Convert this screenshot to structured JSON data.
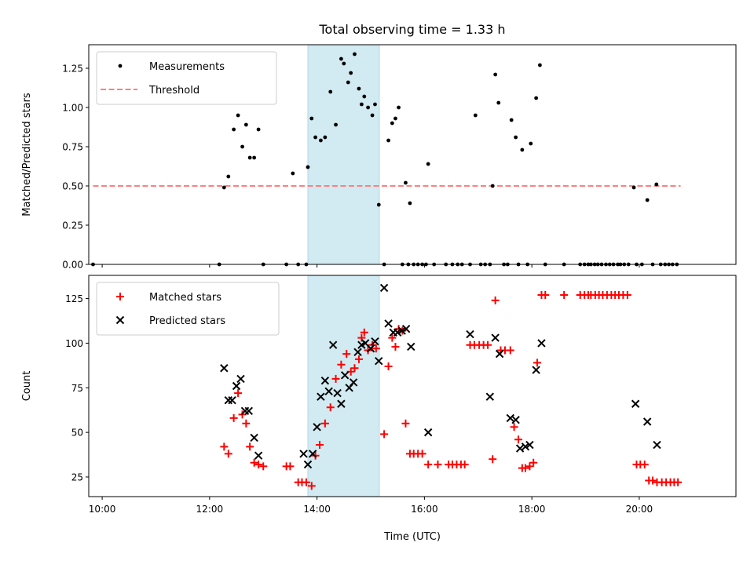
{
  "figure": {
    "title": "Total observing time = 1.33 h"
  },
  "colors": {
    "measure": "#000000",
    "threshold": "#ff7f7f",
    "span": "#add8e6",
    "matched": "#ff0000",
    "predicted": "#000000"
  },
  "chart_data": [
    {
      "type": "scatter",
      "ylabel": "Matched/Predicted stars",
      "xlabel": "",
      "xlim": [
        9.75,
        21.8
      ],
      "ylim": [
        0.0,
        1.4
      ],
      "yticks": [
        0.0,
        0.25,
        0.5,
        0.75,
        1.0,
        1.25
      ],
      "ytick_labels": [
        "0.00",
        "0.25",
        "0.50",
        "0.75",
        "1.00",
        "1.25"
      ],
      "xticks": [
        10,
        12,
        14,
        16,
        18,
        20
      ],
      "span": [
        13.83,
        15.16
      ],
      "legend": {
        "position": "top-left",
        "entries": [
          "Measurements",
          "Threshold"
        ]
      },
      "threshold": {
        "name": "Threshold",
        "x": [
          9.83,
          20.77
        ],
        "y": 0.5
      },
      "series": [
        {
          "name": "Measurements",
          "x": [
            9.83,
            12.18,
            12.27,
            12.35,
            12.45,
            12.53,
            12.61,
            12.68,
            12.75,
            12.83,
            12.91,
            13.0,
            13.43,
            13.55,
            13.65,
            13.8,
            13.83,
            13.9,
            13.97,
            14.07,
            14.15,
            14.25,
            14.35,
            14.45,
            14.5,
            14.58,
            14.63,
            14.7,
            14.78,
            14.83,
            14.88,
            14.95,
            15.03,
            15.08,
            15.15,
            15.25,
            15.33,
            15.4,
            15.46,
            15.52,
            15.59,
            15.65,
            15.7,
            15.73,
            15.8,
            15.88,
            15.96,
            16.03,
            16.07,
            16.18,
            16.4,
            16.52,
            16.62,
            16.7,
            16.85,
            16.95,
            17.05,
            17.13,
            17.22,
            17.27,
            17.32,
            17.38,
            17.48,
            17.55,
            17.62,
            17.7,
            17.75,
            17.82,
            17.92,
            17.98,
            18.08,
            18.15,
            18.25,
            18.6,
            18.9,
            18.98,
            19.05,
            19.1,
            19.17,
            19.23,
            19.3,
            19.38,
            19.45,
            19.52,
            19.6,
            19.65,
            19.72,
            19.8,
            19.9,
            19.95,
            20.05,
            20.15,
            20.25,
            20.32,
            20.4,
            20.48,
            20.55,
            20.62,
            20.7
          ],
          "y": [
            0.0,
            0.0,
            0.49,
            0.56,
            0.86,
            0.95,
            0.75,
            0.89,
            0.68,
            0.68,
            0.86,
            0.0,
            0.0,
            0.58,
            0.0,
            0.0,
            0.62,
            0.93,
            0.81,
            0.79,
            0.81,
            1.1,
            0.89,
            1.31,
            1.28,
            1.16,
            1.22,
            1.34,
            1.12,
            1.02,
            1.07,
            1.0,
            0.95,
            1.02,
            0.38,
            0.0,
            0.79,
            0.9,
            0.93,
            1.0,
            0.0,
            0.52,
            0.0,
            0.39,
            0.0,
            0.0,
            0.0,
            0.0,
            0.64,
            0.0,
            0.0,
            0.0,
            0.0,
            0.0,
            0.0,
            0.95,
            0.0,
            0.0,
            0.0,
            0.5,
            1.21,
            1.03,
            0.0,
            0.0,
            0.92,
            0.81,
            0.0,
            0.73,
            0.0,
            0.77,
            1.06,
            1.27,
            0.0,
            0.0,
            0.0,
            0.0,
            0.0,
            0.0,
            0.0,
            0.0,
            0.0,
            0.0,
            0.0,
            0.0,
            0.0,
            0.0,
            0.0,
            0.0,
            0.49,
            0.0,
            0.0,
            0.41,
            0.0,
            0.51,
            0.0,
            0.0,
            0.0,
            0.0,
            0.0
          ]
        }
      ]
    },
    {
      "type": "scatter",
      "ylabel": "Count",
      "xlabel": "Time (UTC)",
      "xlim": [
        9.75,
        21.8
      ],
      "ylim": [
        14,
        138
      ],
      "yticks": [
        25,
        50,
        75,
        100,
        125
      ],
      "ytick_labels": [
        "25",
        "50",
        "75",
        "100",
        "125"
      ],
      "xticks": [
        10,
        12,
        14,
        16,
        18,
        20
      ],
      "xtick_labels": [
        "10:00",
        "12:00",
        "14:00",
        "16:00",
        "18:00",
        "20:00"
      ],
      "span": [
        13.83,
        15.16
      ],
      "legend": {
        "position": "top-left",
        "entries": [
          "Matched stars",
          "Predicted stars"
        ]
      },
      "series": [
        {
          "name": "Matched stars",
          "x": [
            12.27,
            12.35,
            12.45,
            12.53,
            12.61,
            12.68,
            12.75,
            12.83,
            12.91,
            13.0,
            13.43,
            13.5,
            13.65,
            13.72,
            13.8,
            13.9,
            13.97,
            14.05,
            14.15,
            14.25,
            14.35,
            14.45,
            14.55,
            14.63,
            14.7,
            14.78,
            14.83,
            14.88,
            14.95,
            15.03,
            15.1,
            15.25,
            15.33,
            15.4,
            15.46,
            15.52,
            15.59,
            15.65,
            15.73,
            15.8,
            15.88,
            15.96,
            16.07,
            16.25,
            16.45,
            16.52,
            16.6,
            16.68,
            16.75,
            16.85,
            16.93,
            17.02,
            17.1,
            17.18,
            17.27,
            17.32,
            17.42,
            17.5,
            17.6,
            17.67,
            17.75,
            17.82,
            17.88,
            17.96,
            18.03,
            18.1,
            18.18,
            18.25,
            18.6,
            18.9,
            18.98,
            19.05,
            19.1,
            19.18,
            19.25,
            19.32,
            19.4,
            19.48,
            19.55,
            19.62,
            19.7,
            19.78,
            19.95,
            20.02,
            20.1,
            20.18,
            20.25,
            20.33,
            20.42,
            20.5,
            20.58,
            20.65,
            20.72
          ],
          "y": [
            42,
            38,
            58,
            72,
            60,
            55,
            42,
            33,
            32,
            31,
            31,
            31,
            22,
            22,
            22,
            20,
            37,
            43,
            55,
            64,
            80,
            88,
            94,
            84,
            86,
            91,
            103,
            106,
            96,
            99,
            97,
            49,
            87,
            103,
            98,
            108,
            107,
            55,
            38,
            38,
            38,
            38,
            32,
            32,
            32,
            32,
            32,
            32,
            32,
            99,
            99,
            99,
            99,
            99,
            35,
            124,
            96,
            96,
            96,
            53,
            46,
            30,
            30,
            31,
            33,
            89,
            127,
            127,
            127,
            127,
            127,
            127,
            127,
            127,
            127,
            127,
            127,
            127,
            127,
            127,
            127,
            127,
            32,
            32,
            32,
            23,
            23,
            22,
            22,
            22,
            22,
            22,
            22
          ]
        },
        {
          "name": "Predicted stars",
          "x": [
            12.27,
            12.35,
            12.42,
            12.5,
            12.58,
            12.66,
            12.73,
            12.83,
            12.91,
            13.75,
            13.83,
            13.92,
            14.0,
            14.07,
            14.15,
            14.22,
            14.3,
            14.38,
            14.45,
            14.52,
            14.6,
            14.68,
            14.76,
            14.83,
            14.9,
            15.0,
            15.08,
            15.15,
            15.25,
            15.33,
            15.42,
            15.5,
            15.58,
            15.66,
            15.75,
            16.07,
            16.85,
            17.22,
            17.32,
            17.4,
            17.6,
            17.7,
            17.78,
            17.88,
            17.96,
            18.08,
            18.18,
            19.93,
            20.15,
            20.33
          ],
          "y": [
            86,
            68,
            68,
            76,
            80,
            62,
            62,
            47,
            37,
            38,
            32,
            38,
            53,
            70,
            79,
            73,
            99,
            72,
            66,
            82,
            75,
            78,
            95,
            99,
            100,
            97,
            101,
            90,
            131,
            111,
            106,
            106,
            107,
            108,
            98,
            50,
            105,
            70,
            103,
            94,
            58,
            57,
            41,
            42,
            43,
            85,
            100,
            66,
            56,
            43
          ]
        }
      ]
    }
  ]
}
